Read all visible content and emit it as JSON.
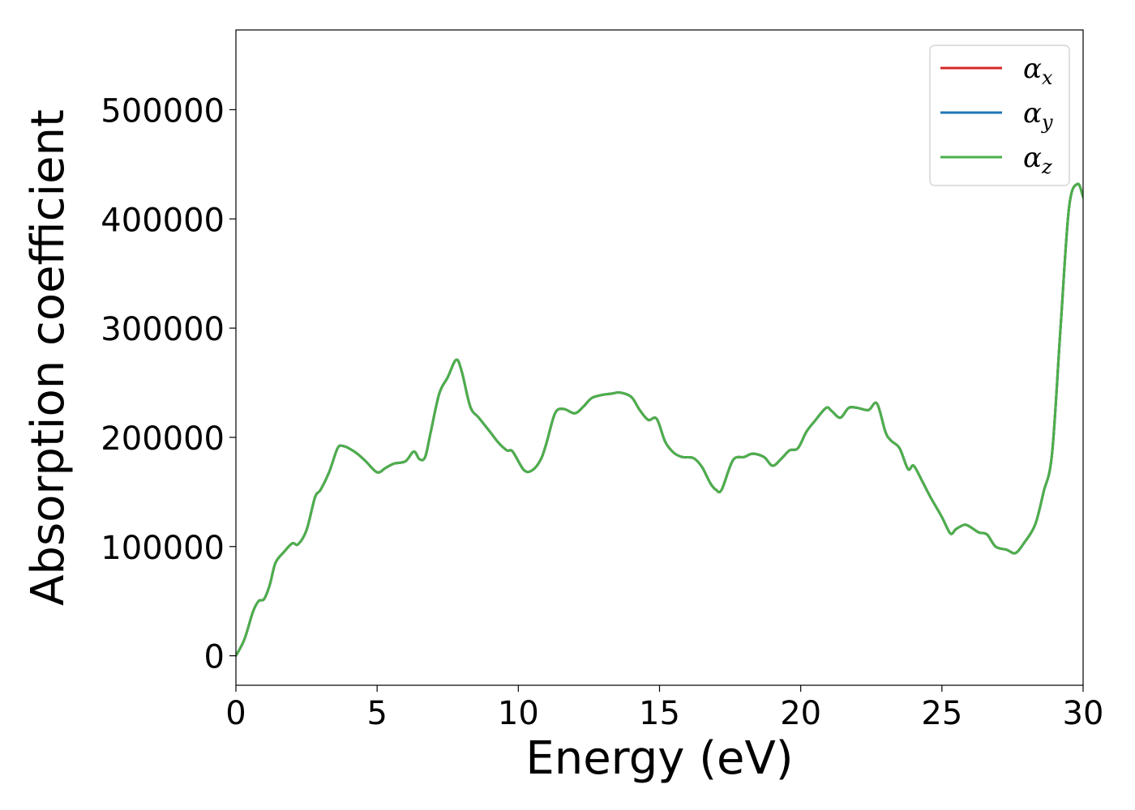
{
  "chart_data": {
    "type": "line",
    "title": "",
    "xlabel": "Energy (eV)",
    "ylabel": "Absorption coefficient",
    "xlim": [
      0,
      30
    ],
    "ylim": [
      -27000,
      573000
    ],
    "xticks": [
      0,
      5,
      10,
      15,
      20,
      25,
      30
    ],
    "yticks": [
      0,
      100000,
      200000,
      300000,
      400000,
      500000
    ],
    "grid": false,
    "legend_position": "top-right",
    "series": [
      {
        "name": "α",
        "subscript": "x",
        "color": "#d62728"
      },
      {
        "name": "α",
        "subscript": "y",
        "color": "#1f77b4"
      },
      {
        "name": "α",
        "subscript": "z",
        "color": "#4daf4a"
      }
    ],
    "x": [
      0,
      0.3,
      0.6,
      0.8,
      1.0,
      1.2,
      1.4,
      1.7,
      2.0,
      2.2,
      2.5,
      2.8,
      3.0,
      3.3,
      3.6,
      3.8,
      4.0,
      4.3,
      4.6,
      5.0,
      5.3,
      5.6,
      6.0,
      6.3,
      6.5,
      6.7,
      6.9,
      7.2,
      7.5,
      7.8,
      8.0,
      8.3,
      8.6,
      9.0,
      9.3,
      9.6,
      9.8,
      10.2,
      10.5,
      10.8,
      11.0,
      11.3,
      11.6,
      12.0,
      12.3,
      12.6,
      13.0,
      13.3,
      13.6,
      14.0,
      14.3,
      14.6,
      14.9,
      15.2,
      15.5,
      15.8,
      16.2,
      16.5,
      16.8,
      17.0,
      17.2,
      17.6,
      18.0,
      18.3,
      18.7,
      19.0,
      19.3,
      19.6,
      19.9,
      20.2,
      20.5,
      20.9,
      21.1,
      21.4,
      21.7,
      22.0,
      22.4,
      22.7,
      23.0,
      23.2,
      23.5,
      23.8,
      24.0,
      24.3,
      24.6,
      25.0,
      25.3,
      25.5,
      25.8,
      26.0,
      26.3,
      26.6,
      26.9,
      27.3,
      27.6,
      27.9,
      28.3,
      28.6,
      28.9,
      29.2,
      29.5,
      29.8,
      30.0
    ],
    "values": [
      0,
      15000,
      40000,
      50000,
      52000,
      65000,
      85000,
      95000,
      103000,
      102000,
      115000,
      145000,
      152000,
      168000,
      190000,
      192000,
      190000,
      185000,
      178000,
      168000,
      172000,
      176000,
      178000,
      187000,
      180000,
      182000,
      205000,
      240000,
      255000,
      271000,
      260000,
      228000,
      218000,
      205000,
      195000,
      188000,
      187000,
      170000,
      170000,
      180000,
      195000,
      222000,
      226000,
      222000,
      228000,
      236000,
      239000,
      240000,
      241000,
      237000,
      225000,
      216000,
      217000,
      196000,
      186000,
      182000,
      181000,
      173000,
      158000,
      152000,
      152000,
      179000,
      182000,
      185000,
      182000,
      174000,
      180000,
      188000,
      190000,
      205000,
      215000,
      227000,
      224000,
      218000,
      227000,
      227000,
      225000,
      231000,
      205000,
      197000,
      190000,
      171000,
      174000,
      160000,
      145000,
      127000,
      112000,
      116000,
      120000,
      118000,
      113000,
      111000,
      100000,
      97000,
      94000,
      103000,
      120000,
      150000,
      185000,
      300000,
      410000,
      432000,
      420000
    ]
  }
}
